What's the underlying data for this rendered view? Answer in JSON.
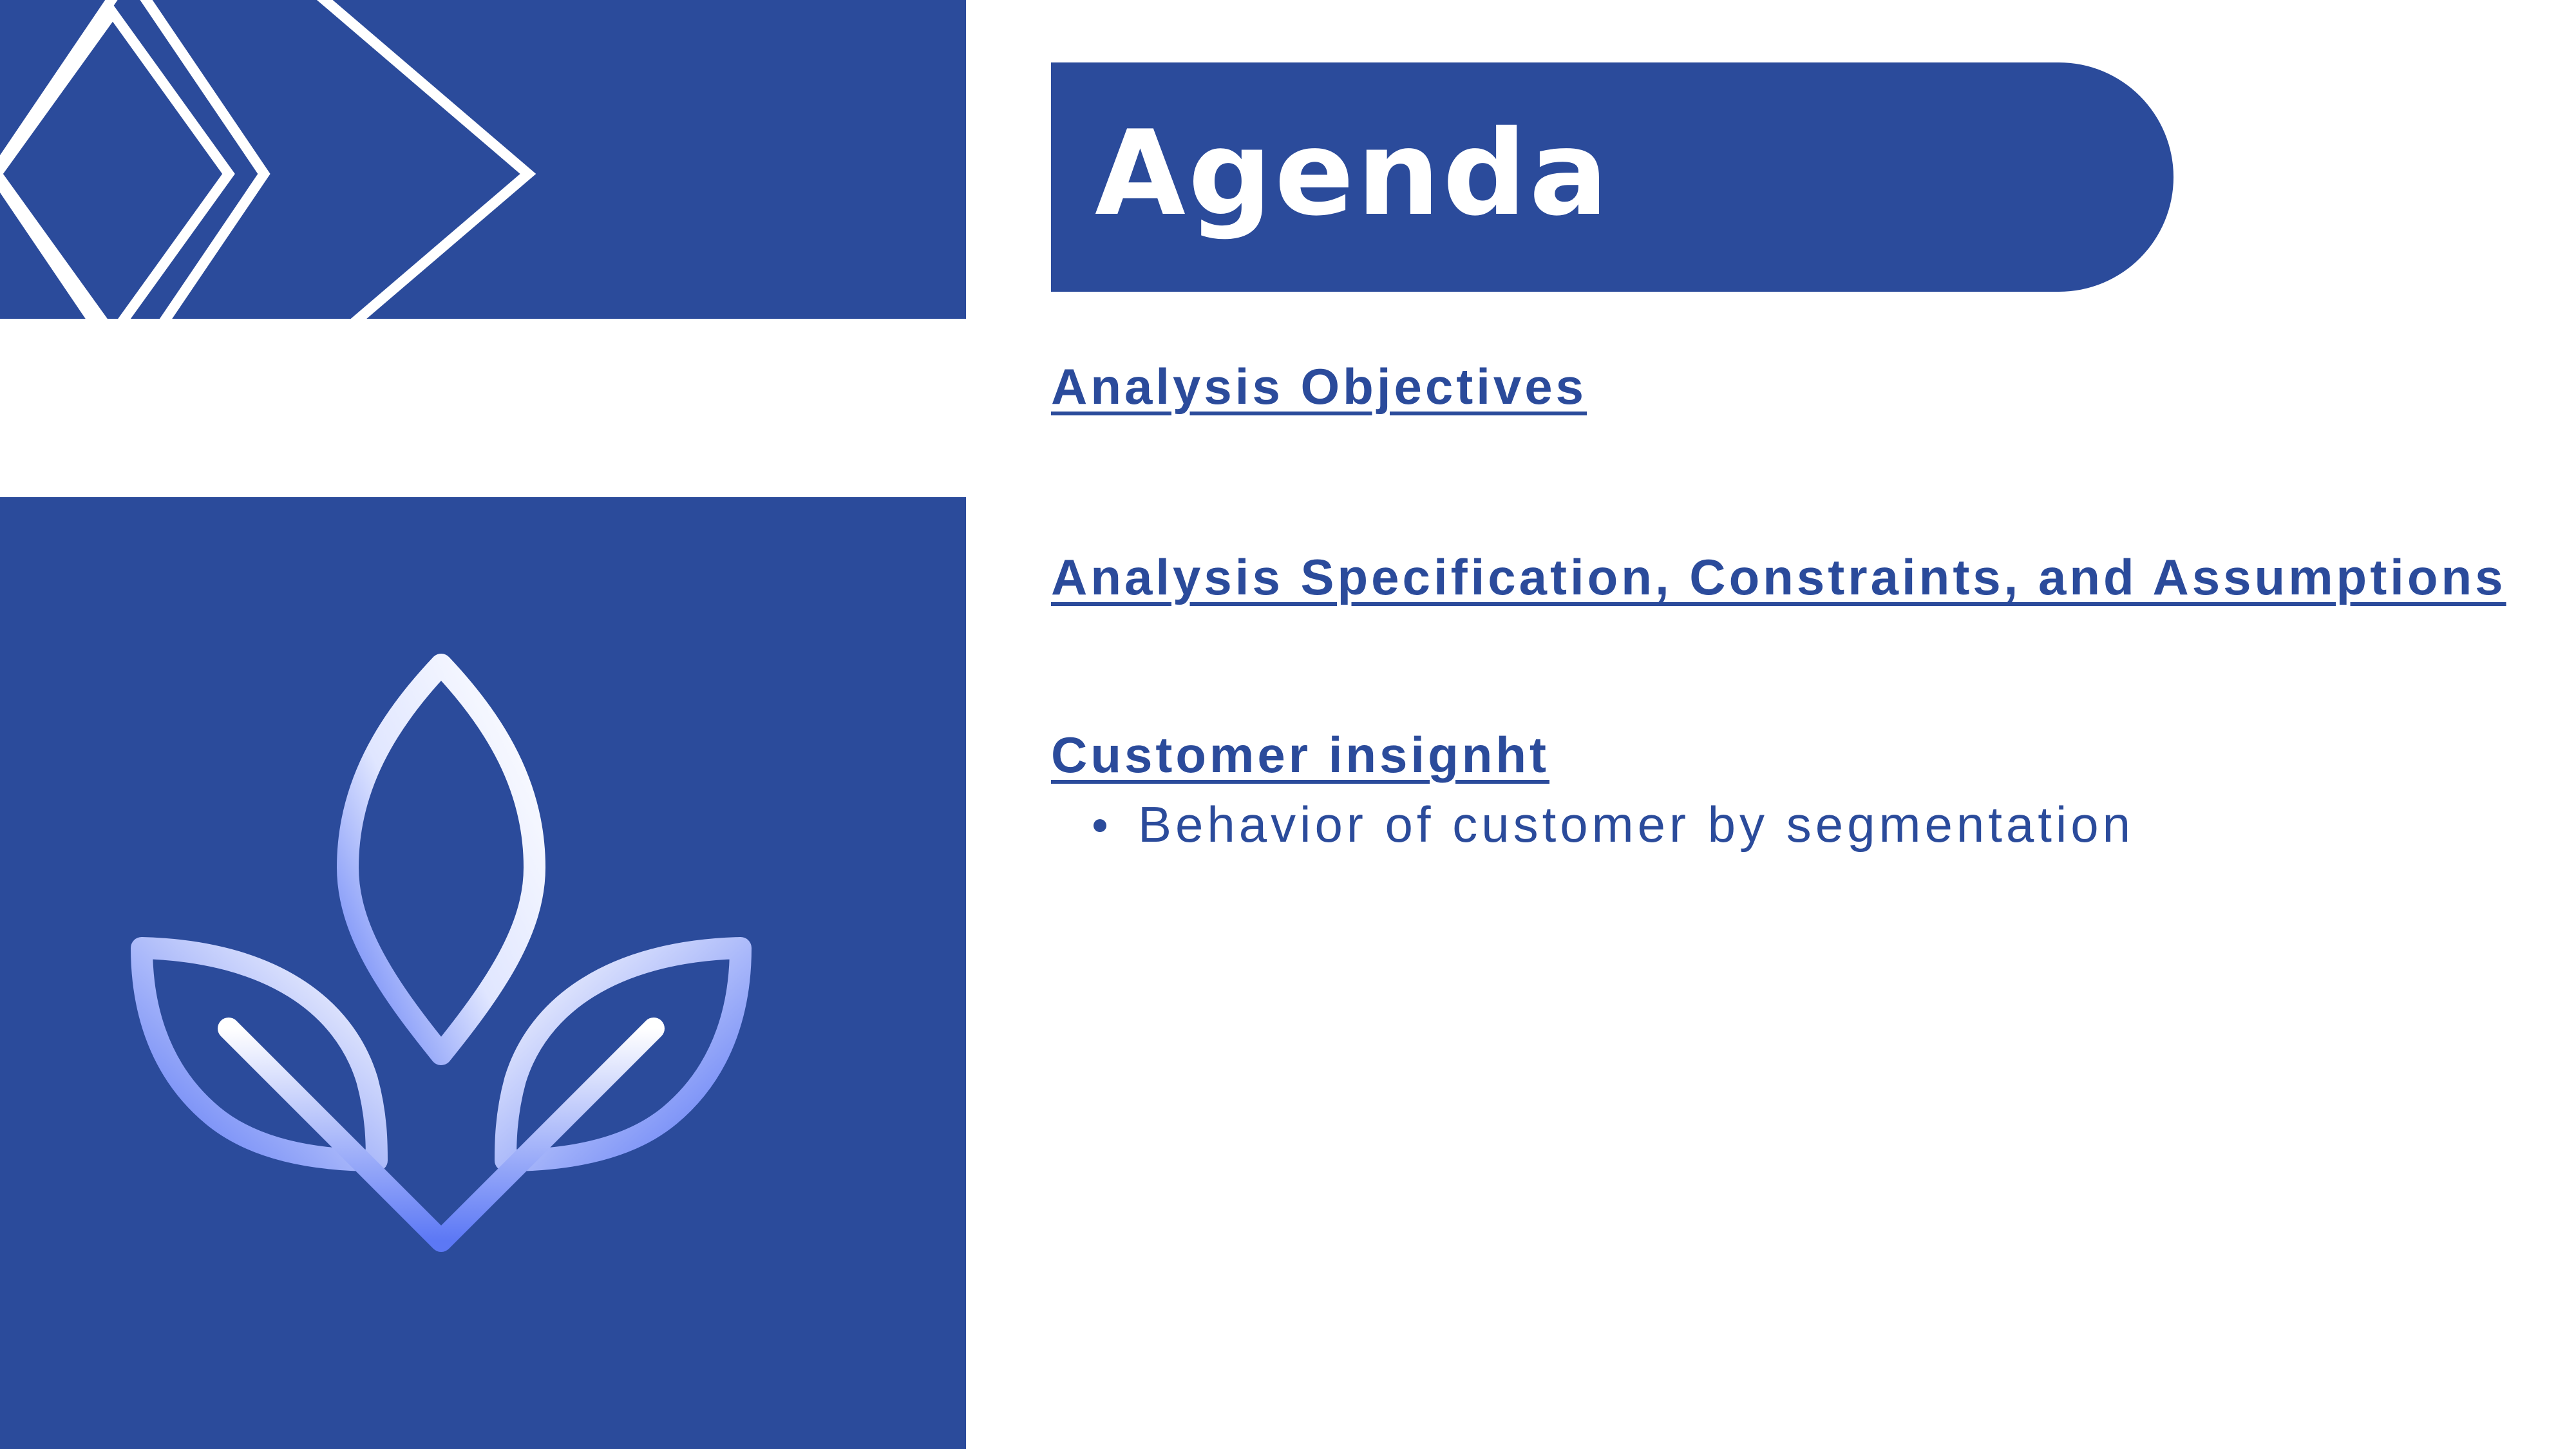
{
  "slide": {
    "title": "Agenda",
    "items": [
      {
        "label": "Analysis Objectives"
      },
      {
        "label": "Analysis Specification, Constraints, and Assumptions"
      },
      {
        "label": "Customer insignht",
        "sub_items": [
          "Behavior of customer by segmentation"
        ]
      }
    ]
  },
  "colors": {
    "primary": "#2b4b9b",
    "background": "#ffffff",
    "icon_gradient_start": "#ffffff",
    "icon_gradient_end": "#5c78f5"
  },
  "icons": {
    "decor": "diamond-lines-pattern",
    "illustration": "sprout-leaves-icon"
  }
}
